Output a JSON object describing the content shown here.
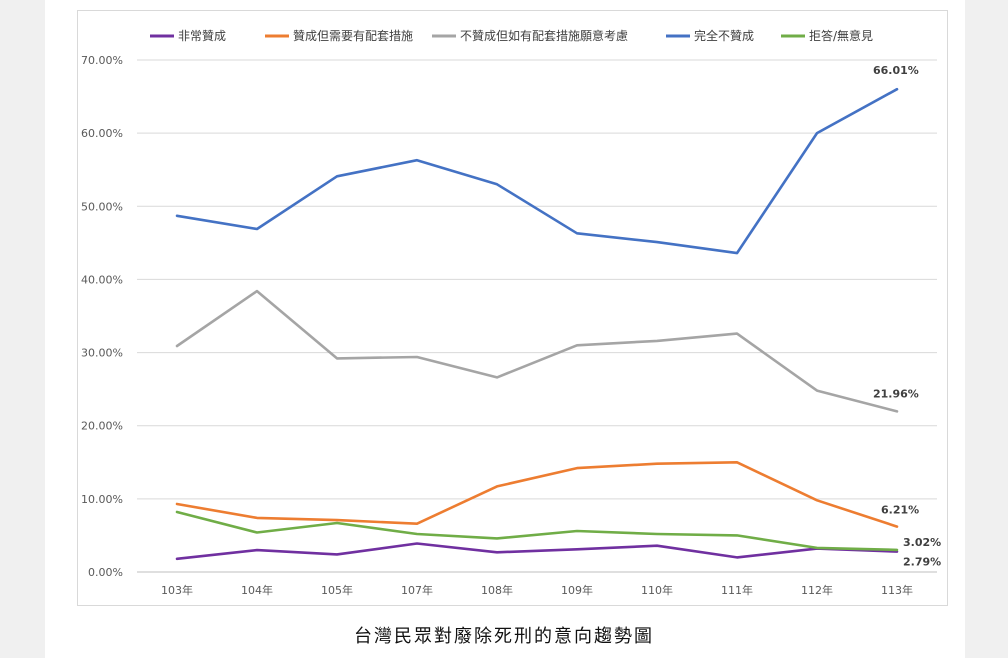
{
  "caption": "台灣民眾對廢除死刑的意向趨勢圖",
  "chart_data": {
    "type": "line",
    "title": "台灣民眾對廢除死刑的意向趨勢圖",
    "categories": [
      "103年",
      "104年",
      "105年",
      "107年",
      "108年",
      "109年",
      "110年",
      "111年",
      "112年",
      "113年"
    ],
    "ylim": [
      0,
      70
    ],
    "yticks": [
      "0.00%",
      "10.00%",
      "20.00%",
      "30.00%",
      "40.00%",
      "50.00%",
      "60.00%",
      "70.00%"
    ],
    "grid": true,
    "legend_position": "top",
    "series": [
      {
        "name": "非常贊成",
        "color": "#7030a0",
        "values": [
          1.8,
          3.0,
          2.4,
          3.9,
          2.7,
          3.1,
          3.6,
          2.0,
          3.2,
          2.79
        ],
        "end_label": "2.79%"
      },
      {
        "name": "贊成但需要有配套措施",
        "color": "#ed7d31",
        "values": [
          9.3,
          7.4,
          7.1,
          6.6,
          11.7,
          14.2,
          14.8,
          15.0,
          9.8,
          6.21
        ],
        "end_label": "6.21%"
      },
      {
        "name": "不贊成但如有配套措施願意考慮",
        "color": "#a5a5a5",
        "values": [
          30.9,
          38.4,
          29.2,
          29.4,
          26.6,
          31.0,
          31.6,
          32.6,
          24.8,
          21.96
        ],
        "end_label": "21.96%"
      },
      {
        "name": "完全不贊成",
        "color": "#4472c4",
        "values": [
          48.7,
          46.9,
          54.1,
          56.3,
          53.0,
          46.3,
          45.1,
          43.6,
          60.0,
          66.01
        ],
        "end_label": "66.01%"
      },
      {
        "name": "拒答/無意見",
        "color": "#70ad47",
        "values": [
          8.2,
          5.4,
          6.7,
          5.2,
          4.6,
          5.6,
          5.2,
          5.0,
          3.3,
          3.02
        ],
        "end_label": "3.02%"
      }
    ]
  }
}
